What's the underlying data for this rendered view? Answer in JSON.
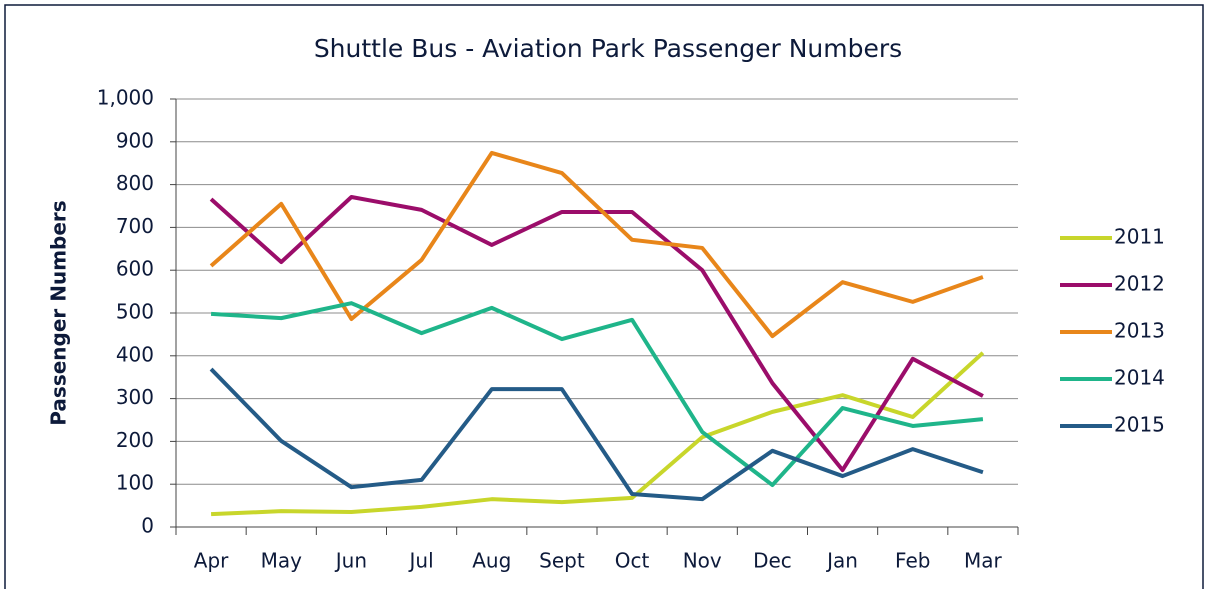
{
  "chart_data": {
    "type": "line",
    "title": "Shuttle Bus - Aviation Park Passenger Numbers",
    "y_label": "Passenger Numbers",
    "categories": [
      "Apr",
      "May",
      "Jun",
      "Jul",
      "Aug",
      "Sept",
      "Oct",
      "Nov",
      "Dec",
      "Jan",
      "Feb",
      "Mar"
    ],
    "series": [
      {
        "name": "2011",
        "color": "#c8d62b",
        "values": [
          30,
          37,
          35,
          47,
          65,
          58,
          68,
          210,
          269,
          308,
          257,
          407
        ]
      },
      {
        "name": "2012",
        "color": "#9b0d6a",
        "values": [
          766,
          619,
          771,
          741,
          659,
          736,
          736,
          600,
          336,
          133,
          393,
          306
        ]
      },
      {
        "name": "2013",
        "color": "#e8861a",
        "values": [
          610,
          755,
          486,
          624,
          874,
          827,
          671,
          652,
          446,
          572,
          526,
          584
        ]
      },
      {
        "name": "2014",
        "color": "#1fb58a",
        "values": [
          498,
          488,
          523,
          453,
          512,
          439,
          484,
          222,
          98,
          278,
          236,
          252
        ]
      },
      {
        "name": "2015",
        "color": "#245b87",
        "values": [
          369,
          201,
          93,
          110,
          322,
          322,
          77,
          65,
          178,
          119,
          182,
          128
        ]
      }
    ],
    "ylim": [
      0,
      1000
    ],
    "yticks": [
      0,
      100,
      200,
      300,
      400,
      500,
      600,
      700,
      800,
      900,
      {
        "value": 1000,
        "label": "1,000"
      }
    ],
    "grid": true,
    "legend": "right"
  }
}
